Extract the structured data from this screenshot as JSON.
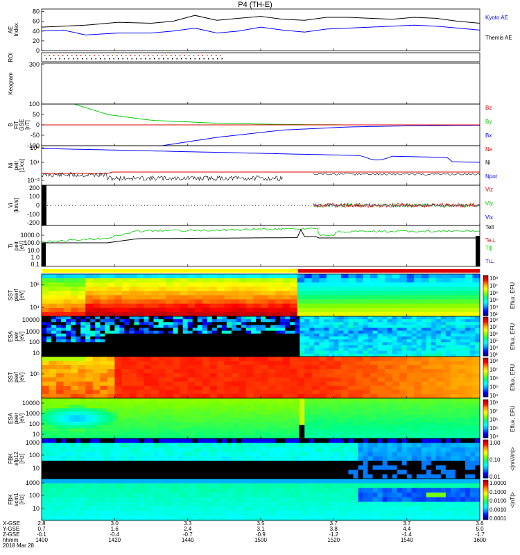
{
  "title": "P4 (TH-E)",
  "colors": {
    "black": "#000000",
    "blue": "#0000ff",
    "green": "#00cc00",
    "red": "#dd0000",
    "yellow": "#ffff00",
    "magenta_bar": "#dd0000"
  },
  "chart_data": [
    {
      "type": "line",
      "panel": "AE Index",
      "ylabel": "AE Index",
      "yticks": [
        "0",
        "20",
        "40",
        "60",
        "80"
      ],
      "ylim": [
        0,
        85
      ],
      "legend": [
        "Kyoto AE",
        "Themis AE"
      ],
      "series": [
        {
          "name": "Kyoto AE",
          "color": "#0000ff",
          "x": [
            14.0,
            14.1,
            14.2,
            14.35,
            14.5,
            14.6,
            14.7,
            14.8,
            14.9,
            15.0,
            15.1,
            15.2,
            15.3,
            15.4,
            15.5,
            15.6,
            15.7,
            15.8,
            15.9,
            16.0
          ],
          "y": [
            40,
            42,
            32,
            36,
            36,
            40,
            46,
            36,
            40,
            48,
            42,
            38,
            44,
            46,
            48,
            50,
            52,
            50,
            46,
            42
          ]
        },
        {
          "name": "Themis AE",
          "color": "#000000",
          "x": [
            14.0,
            14.1,
            14.2,
            14.35,
            14.5,
            14.6,
            14.7,
            14.8,
            14.9,
            15.0,
            15.1,
            15.2,
            15.3,
            15.4,
            15.5,
            15.6,
            15.7,
            15.8,
            15.9,
            16.0
          ],
          "y": [
            48,
            50,
            52,
            58,
            56,
            60,
            72,
            62,
            66,
            70,
            64,
            62,
            68,
            68,
            66,
            64,
            68,
            66,
            60,
            56
          ]
        }
      ]
    },
    {
      "type": "bar",
      "panel": "ROI",
      "ylabel": "ROI"
    },
    {
      "type": "heatmap",
      "panel": "Keogram",
      "ylabel": "Keogram",
      "yticks": [
        "300"
      ]
    },
    {
      "type": "line",
      "panel": "B FIT GSE",
      "ylabel": "B FIT GSE [nT]",
      "yticks": [
        "100",
        "50",
        "0",
        "-50",
        "-100"
      ],
      "ylim": [
        -100,
        100
      ],
      "legend": [
        "Bz",
        "By",
        "Bx"
      ],
      "series": [
        {
          "name": "By",
          "color": "#00cc00",
          "x": [
            14.15,
            14.3,
            14.5,
            14.8,
            15.1,
            15.4,
            15.7,
            16.0
          ],
          "y": [
            100,
            50,
            22,
            8,
            2,
            0,
            0,
            0
          ]
        },
        {
          "name": "Bx",
          "color": "#0000ff",
          "x": [
            14.55,
            14.8,
            15.1,
            15.4,
            15.7,
            16.0
          ],
          "y": [
            -100,
            -60,
            -25,
            -10,
            -4,
            -2
          ]
        },
        {
          "name": "Bz",
          "color": "#dd0000",
          "x": [
            14.0,
            16.0
          ],
          "y": [
            0,
            0
          ]
        }
      ]
    },
    {
      "type": "line",
      "panel": "Ni",
      "ylabel": "Ni peir [1/cc]",
      "yticks": [
        "10⁸",
        "10⁴",
        "10⁻²"
      ],
      "legend": [
        "Ne",
        "Ni",
        "Npot"
      ]
    },
    {
      "type": "line",
      "panel": "Vi",
      "ylabel": "Vi [km/s]",
      "yticks": [
        "200",
        "100",
        "0",
        "-100",
        "-200"
      ],
      "legend": [
        "Viz",
        "Viy",
        "Vix"
      ]
    },
    {
      "type": "line",
      "panel": "Ti",
      "ylabel": "Ti peir [eV]",
      "yticks": [
        "1000.0",
        "100.0",
        "10.0",
        "1.0",
        "0.1"
      ],
      "legend": [
        "Tell",
        "Te⊥",
        "Ti∥",
        "Ti⊥"
      ]
    },
    {
      "type": "heatmap",
      "panel": "SST pserf",
      "ylabel": "SST pserf [eV]",
      "yticks": [
        "10⁶",
        "10⁴"
      ],
      "colorbar": [
        "10⁸",
        "10⁷",
        "10⁶",
        "10⁵",
        "10⁴",
        "10³"
      ],
      "colorbar_label": "Eflux, EFU"
    },
    {
      "type": "heatmap",
      "panel": "ESA peir",
      "ylabel": "ESA peir [eV]",
      "yticks": [
        "10000",
        "1000",
        "100",
        "10"
      ],
      "colorbar": [
        "10⁸",
        "10⁷",
        "10⁶",
        "10⁵",
        "10⁴",
        "10³"
      ],
      "colorbar_label": "Eflux, EFU"
    },
    {
      "type": "heatmap",
      "panel": "SST psef",
      "ylabel": "SST psef [eV]",
      "yticks": [
        "10⁵"
      ],
      "colorbar": [
        "10⁸",
        "10⁷",
        "10⁶",
        "10⁵",
        "10⁴"
      ],
      "colorbar_label": "Eflux, EFU"
    },
    {
      "type": "heatmap",
      "panel": "ESA peer",
      "ylabel": "ESA peer [eV]",
      "yticks": [
        "10000",
        "1000",
        "100",
        "10"
      ],
      "colorbar": [
        "10⁸",
        "10⁷",
        "10⁶",
        "10⁵",
        "10⁴"
      ],
      "colorbar_label": "Eflux, EFU"
    },
    {
      "type": "heatmap",
      "panel": "FBK efp12",
      "ylabel": "FBK efp12 [Hz]",
      "yticks": [
        "1000",
        "100",
        "10"
      ],
      "colorbar": [
        "1.00",
        "0.10",
        "0.01"
      ],
      "colorbar_label": "<|mV/m|>"
    },
    {
      "type": "heatmap",
      "panel": "FBK scm1",
      "ylabel": "FBK scm1 [Hz]",
      "yticks": [
        "1000",
        "100",
        "10"
      ],
      "colorbar": [
        "1.0000",
        "0.1000",
        "0.0100",
        "0.0010",
        "0.0001"
      ],
      "colorbar_label": "<|nT|>"
    }
  ],
  "footer": {
    "row_labels": [
      "X-GSE",
      "Y-GSE",
      "Z-GSE",
      "hhmm",
      "2018 Mar 28"
    ],
    "columns": [
      [
        "2.8",
        "0.7",
        "-0.1",
        "1400"
      ],
      [
        "3.0",
        "1.6",
        "-0.4",
        "1420"
      ],
      [
        "3.3",
        "2.4",
        "-0.7",
        "1440"
      ],
      [
        "3.5",
        "3.1",
        "-0.9",
        "1500"
      ],
      [
        "3.7",
        "3.8",
        "-1.2",
        "1520"
      ],
      [
        "3.7",
        "4.4",
        "-1.4",
        "1540"
      ],
      [
        "3.6",
        "5.0",
        "-1.7",
        "1600"
      ]
    ]
  }
}
